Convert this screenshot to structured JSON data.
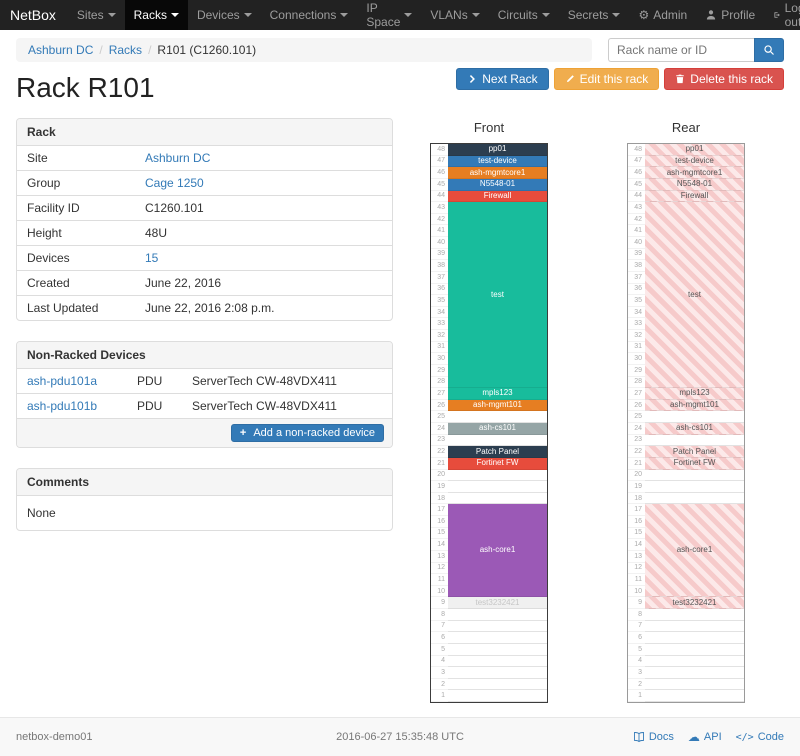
{
  "navbar": {
    "brand": "NetBox",
    "items": [
      "Sites",
      "Racks",
      "Devices",
      "Connections",
      "IP Space",
      "VLANs",
      "Circuits",
      "Secrets"
    ],
    "active_item": "Racks",
    "right": {
      "admin": "Admin",
      "profile": "Profile",
      "logout": "Log out"
    }
  },
  "breadcrumb": {
    "items": [
      {
        "label": "Ashburn DC",
        "link": true
      },
      {
        "label": "Racks",
        "link": true
      },
      {
        "label": "R101 (C1260.101)",
        "link": false
      }
    ]
  },
  "search": {
    "placeholder": "Rack name or ID"
  },
  "actions": {
    "next": "Next Rack",
    "edit": "Edit this rack",
    "delete": "Delete this rack"
  },
  "page_title": "Rack R101",
  "rack_panel": {
    "title": "Rack",
    "rows": [
      {
        "label": "Site",
        "value": "Ashburn DC",
        "link": true
      },
      {
        "label": "Group",
        "value": "Cage 1250",
        "link": true
      },
      {
        "label": "Facility ID",
        "value": "C1260.101",
        "link": false
      },
      {
        "label": "Height",
        "value": "48U",
        "link": false
      },
      {
        "label": "Devices",
        "value": "15",
        "link": true
      },
      {
        "label": "Created",
        "value": "June 22, 2016",
        "link": false
      },
      {
        "label": "Last Updated",
        "value": "June 22, 2016 2:08 p.m.",
        "link": false
      }
    ]
  },
  "nonracked_panel": {
    "title": "Non-Racked Devices",
    "rows": [
      {
        "name": "ash-pdu101a",
        "role": "PDU",
        "type": "ServerTech CW-48VDX411"
      },
      {
        "name": "ash-pdu101b",
        "role": "PDU",
        "type": "ServerTech CW-48VDX411"
      }
    ],
    "add_button": "Add a non-racked device"
  },
  "comments_panel": {
    "title": "Comments",
    "body": "None"
  },
  "elevation": {
    "front_title": "Front",
    "rear_title": "Rear",
    "total_units": 48,
    "slots": [
      {
        "name": "pp01",
        "units": 1,
        "color": "#2c3e50",
        "text": "#ffffff"
      },
      {
        "name": "test-device",
        "units": 1,
        "color": "#337ab7",
        "text": "#ffffff"
      },
      {
        "name": "ash-mgmtcore1",
        "units": 1,
        "color": "#e67e22",
        "text": "#ffffff"
      },
      {
        "name": "N5548-01",
        "units": 1,
        "color": "#337ab7",
        "text": "#ffffff"
      },
      {
        "name": "Firewall",
        "units": 1,
        "color": "#e74c3c",
        "text": "#ffffff"
      },
      {
        "name": "test",
        "units": 16,
        "color": "#18bc9c",
        "text": "#ffffff"
      },
      {
        "name": "mpls123",
        "units": 1,
        "color": "#18bc9c",
        "text": "#ffffff"
      },
      {
        "name": "ash-mgmt101",
        "units": 1,
        "color": "#e67e22",
        "text": "#ffffff"
      },
      {
        "empty": true,
        "units": 1
      },
      {
        "name": "ash-cs101",
        "units": 1,
        "color": "#95a5a6",
        "text": "#ffffff"
      },
      {
        "empty": true,
        "units": 1
      },
      {
        "name": "Patch Panel",
        "units": 1,
        "color": "#2c3e50",
        "text": "#ffffff"
      },
      {
        "name": "Fortinet FW",
        "units": 1,
        "color": "#e74c3c",
        "text": "#ffffff"
      },
      {
        "empty": true,
        "units": 3
      },
      {
        "name": "ash-core1",
        "units": 8,
        "color": "#9b59b6",
        "text": "#ffffff"
      },
      {
        "name": "test3232421",
        "units": 1,
        "color": "#f0f0f0",
        "text": "#c6c6c6"
      },
      {
        "empty": true,
        "units": 8
      }
    ]
  },
  "footer": {
    "hostname": "netbox-demo01",
    "timestamp": "2016-06-27 15:35:48 UTC",
    "links": [
      {
        "label": "Docs",
        "icon": "book-icon"
      },
      {
        "label": "API",
        "icon": "cloud-icon"
      },
      {
        "label": "Code",
        "icon": "code-icon"
      }
    ]
  },
  "colors": {
    "accent": "#337ab7",
    "warning": "#f0ad4e",
    "danger": "#d9534f",
    "navbar_bg": "#222222"
  }
}
